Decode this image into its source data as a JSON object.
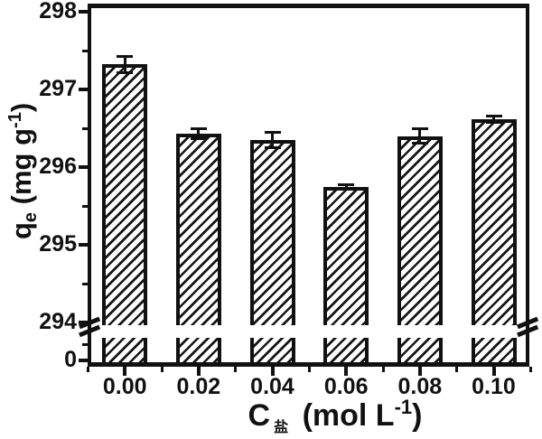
{
  "figure": {
    "background": "#ffffff",
    "ink_color": "#111111"
  },
  "axes": {
    "y": {
      "base": "q",
      "sub": "e",
      "mid": " (mg g",
      "sup": "-1",
      "end": ")"
    },
    "x": {
      "base": "C",
      "sub": "盐",
      "mid": " (mol L",
      "sup": "-1",
      "end": ")"
    }
  },
  "chart_data": {
    "type": "bar",
    "title": "",
    "xlabel": "C盐 (mol L-1)",
    "ylabel": "qe (mg g-1)",
    "categories": [
      "0.00",
      "0.02",
      "0.04",
      "0.06",
      "0.08",
      "0.10"
    ],
    "values": [
      297.32,
      296.43,
      296.35,
      295.74,
      296.4,
      296.62
    ],
    "error_bars": [
      0.1,
      0.06,
      0.1,
      0.03,
      0.09,
      0.04
    ],
    "y_major_ticks": [
      294,
      295,
      296,
      297,
      298
    ],
    "y_minor_step": 0.5,
    "ylim_upper_segment": [
      294,
      298
    ],
    "y_axis_break": {
      "below_value": 294,
      "resume_label": "0"
    },
    "bar_fill": "diagonal-hatch",
    "bar_color": "#111111",
    "grid": false,
    "legend": false
  }
}
